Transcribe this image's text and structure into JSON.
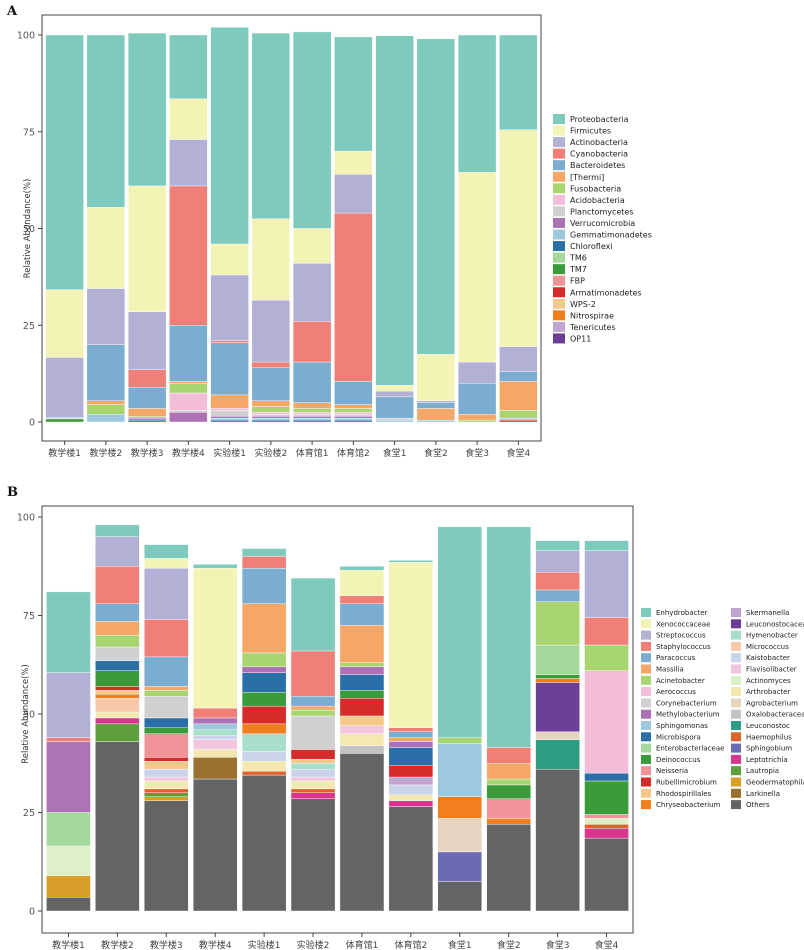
{
  "panels": {
    "a": "A",
    "b": "B"
  },
  "chart_data": [
    {
      "type": "bar",
      "stacked": true,
      "panel": "A",
      "title": "",
      "xlabel": "",
      "ylabel": "Relative Abundance(%)",
      "ylim": [
        0,
        100
      ],
      "yticks": [
        0,
        25,
        50,
        75,
        100
      ],
      "grid": false,
      "legend_position": "right",
      "categories": [
        "教学楼1",
        "教学楼2",
        "教学楼3",
        "教学楼4",
        "实验楼1",
        "实验楼2",
        "体育馆1",
        "体育馆2",
        "食堂1",
        "食堂2",
        "食堂3",
        "食堂4"
      ],
      "series": [
        {
          "name": "Proteobacteria",
          "color": "#7ECBBE",
          "values": [
            65.8,
            44.5,
            39.5,
            16.5,
            56.0,
            48.0,
            50.8,
            29.5,
            90.3,
            81.5,
            35.5,
            24.5
          ]
        },
        {
          "name": "Firmicutes",
          "color": "#F3F3B5",
          "values": [
            17.5,
            21.0,
            32.5,
            10.5,
            8.0,
            21.0,
            9.0,
            6.0,
            1.5,
            12.0,
            49.0,
            56.0
          ]
        },
        {
          "name": "Actinobacteria",
          "color": "#B3B0D6",
          "values": [
            15.5,
            14.5,
            15.0,
            12.0,
            17.0,
            16.0,
            15.0,
            10.0,
            1.5,
            0.5,
            5.5,
            6.5
          ]
        },
        {
          "name": "Cyanobacteria",
          "color": "#F07F78",
          "values": [
            0,
            0,
            4.5,
            36.0,
            0.5,
            1.5,
            10.5,
            43.5,
            0,
            0,
            0,
            0
          ]
        },
        {
          "name": "Bacteroidetes",
          "color": "#7AADD0",
          "values": [
            0.2,
            14.5,
            5.5,
            14.5,
            13.5,
            8.5,
            10.5,
            6.0,
            5.5,
            1.5,
            8.0,
            2.5
          ]
        },
        {
          "name": "[Thermi]",
          "color": "#F5A767",
          "values": [
            0,
            1.0,
            2.0,
            0.5,
            3.5,
            1.5,
            1.5,
            1.0,
            0,
            3.0,
            1.5,
            7.5
          ]
        },
        {
          "name": "Fusobacteria",
          "color": "#A9D570",
          "values": [
            0,
            2.5,
            0.5,
            2.5,
            0,
            1.5,
            1.0,
            1.0,
            0,
            0,
            0.5,
            2.0
          ]
        },
        {
          "name": "Acidobacteria",
          "color": "#F3BDDA",
          "values": [
            0,
            0,
            0,
            4.5,
            0.5,
            0.5,
            0.5,
            0.5,
            0,
            0,
            0,
            0
          ]
        },
        {
          "name": "Planctomycetes",
          "color": "#D0D0D0",
          "values": [
            0,
            0,
            0,
            0.5,
            1.5,
            0.5,
            0.5,
            0.5,
            0.5,
            0,
            0,
            0
          ]
        },
        {
          "name": "Verrucomicrobia",
          "color": "#AD71B6",
          "values": [
            0.2,
            0,
            0.5,
            2.5,
            0.5,
            0.5,
            0.5,
            0.5,
            0,
            0,
            0,
            0
          ]
        },
        {
          "name": "Gemmatimonadetes",
          "color": "#9DC8E0",
          "values": [
            0,
            2.0,
            0,
            0,
            0.5,
            0.5,
            0.5,
            0.5,
            0.5,
            0.5,
            0,
            0.5
          ]
        },
        {
          "name": "Chloroflexi",
          "color": "#2A6FA8",
          "values": [
            0,
            0,
            0.5,
            0,
            0.5,
            0.5,
            0.5,
            0.5,
            0,
            0,
            0,
            0
          ]
        },
        {
          "name": "TM6",
          "color": "#A3D99A",
          "values": [
            0,
            0,
            0,
            0,
            0,
            0,
            0,
            0,
            0,
            0,
            0,
            0
          ]
        },
        {
          "name": "TM7",
          "color": "#3A9B3A",
          "values": [
            0.8,
            0,
            0,
            0,
            0,
            0,
            0,
            0,
            0,
            0,
            0,
            0
          ]
        },
        {
          "name": "FBP",
          "color": "#F0949A",
          "values": [
            0,
            0,
            0,
            0,
            0,
            0,
            0,
            0,
            0,
            0,
            0,
            0
          ]
        },
        {
          "name": "Armatimonadetes",
          "color": "#D62B2B",
          "values": [
            0,
            0,
            0,
            0,
            0,
            0,
            0,
            0,
            0,
            0,
            0,
            0.5
          ]
        },
        {
          "name": "WPS-2",
          "color": "#F5C98A",
          "values": [
            0,
            0,
            0,
            0,
            0,
            0,
            0,
            0,
            0,
            0,
            0,
            0
          ]
        },
        {
          "name": "Nitrospirae",
          "color": "#F07E1E",
          "values": [
            0,
            0,
            0,
            0,
            0,
            0,
            0,
            0,
            0,
            0,
            0,
            0
          ]
        },
        {
          "name": "Tenericutes",
          "color": "#BFA6D2",
          "values": [
            0,
            0,
            0,
            0,
            0,
            0,
            0,
            0,
            0,
            0,
            0,
            0
          ]
        },
        {
          "name": "OP11",
          "color": "#6B3F98",
          "values": [
            0,
            0,
            0,
            0,
            0,
            0,
            0,
            0,
            0,
            0,
            0,
            0
          ]
        }
      ]
    },
    {
      "type": "bar",
      "stacked": true,
      "panel": "B",
      "title": "",
      "xlabel": "",
      "ylabel": "Relative Abundance(%)",
      "ylim": [
        0,
        100
      ],
      "yticks": [
        0,
        25,
        50,
        75,
        100
      ],
      "grid": false,
      "legend_position": "right",
      "categories": [
        "教学楼1",
        "教学楼2",
        "教学楼3",
        "教学楼4",
        "实验楼1",
        "实验楼2",
        "体育馆1",
        "体育馆2",
        "食堂1",
        "食堂2",
        "食堂3",
        "食堂4"
      ],
      "stack_order": "others-at-bottom",
      "series": [
        {
          "name": "Enhydrobacter",
          "color": "#7ECBBE",
          "values": [
            20.5,
            3.0,
            3.5,
            1.0,
            2.0,
            18.5,
            1.0,
            0.5,
            53.5,
            56.0,
            2.5,
            2.5
          ]
        },
        {
          "name": "Xenococcaceae",
          "color": "#F3F3B5",
          "values": [
            0,
            0,
            2.5,
            35.5,
            0,
            0,
            6.5,
            42.0,
            0,
            0,
            0,
            0
          ]
        },
        {
          "name": "Streptococcus",
          "color": "#B3B0D6",
          "values": [
            16.5,
            7.5,
            13.0,
            0,
            0,
            0,
            0,
            0,
            0,
            0,
            5.5,
            17.0
          ]
        },
        {
          "name": "Staphylococcus",
          "color": "#F07F78",
          "values": [
            1.0,
            9.5,
            9.5,
            2.5,
            3.0,
            11.5,
            2.0,
            1.0,
            0,
            4.0,
            4.5,
            7.0
          ]
        },
        {
          "name": "Paracoccus",
          "color": "#7AADD0",
          "values": [
            0,
            4.5,
            7.5,
            0,
            9.0,
            2.5,
            5.5,
            1.5,
            0,
            0,
            3.0,
            0
          ]
        },
        {
          "name": "Massilia",
          "color": "#F5A767",
          "values": [
            0,
            3.5,
            1.0,
            0,
            12.5,
            1.0,
            9.5,
            1.0,
            0,
            4.0,
            0,
            0
          ]
        },
        {
          "name": "Acinetobacter",
          "color": "#A9D570",
          "values": [
            0,
            3.0,
            1.5,
            0,
            3.5,
            1.5,
            1.0,
            0,
            1.5,
            1.5,
            11.0,
            6.5
          ]
        },
        {
          "name": "Aerococcus",
          "color": "#F3BDDA",
          "values": [
            0,
            0,
            0,
            0,
            0,
            0,
            0,
            0,
            0,
            0,
            0,
            26.0
          ]
        },
        {
          "name": "Corynebacterium",
          "color": "#D0D0D0",
          "values": [
            0,
            3.5,
            5.5,
            0,
            0,
            8.5,
            0,
            0,
            0,
            0,
            0,
            0
          ]
        },
        {
          "name": "Methylobacterium",
          "color": "#AD71B6",
          "values": [
            18.0,
            0,
            0,
            1.5,
            1.5,
            0,
            2.0,
            1.5,
            0,
            0,
            0,
            0
          ]
        },
        {
          "name": "Sphingomonas",
          "color": "#9DC8E0",
          "values": [
            0,
            0,
            0,
            1.5,
            0,
            0,
            0,
            0,
            13.5,
            0,
            0,
            0
          ]
        },
        {
          "name": "Microbispora",
          "color": "#2A6FA8",
          "values": [
            0,
            2.5,
            2.5,
            0,
            5.0,
            0,
            4.0,
            4.5,
            0,
            0,
            0,
            2.0
          ]
        },
        {
          "name": "Enterobacteriaceae",
          "color": "#A3D99A",
          "values": [
            8.5,
            0,
            0,
            0,
            0,
            0,
            0,
            0,
            0,
            0,
            7.5,
            0
          ]
        },
        {
          "name": "Deinococcus",
          "color": "#3A9B3A",
          "values": [
            0,
            4.0,
            1.5,
            0,
            3.5,
            0,
            2.0,
            0,
            0,
            3.5,
            1.0,
            8.5
          ]
        },
        {
          "name": "Neisseria",
          "color": "#F0949A",
          "values": [
            0,
            0,
            6.0,
            0,
            0,
            0,
            0,
            0,
            0,
            5.0,
            0,
            1.0
          ]
        },
        {
          "name": "Rubellimicrobium",
          "color": "#D62B2B",
          "values": [
            0,
            1.0,
            1.0,
            0,
            4.5,
            2.5,
            4.5,
            3.0,
            0,
            0,
            0,
            0
          ]
        },
        {
          "name": "Rhodospirillales",
          "color": "#F5C98A",
          "values": [
            0,
            1.0,
            2.0,
            0,
            0,
            1.0,
            2.5,
            0,
            0,
            0,
            0,
            0
          ]
        },
        {
          "name": "Chryseobacterium",
          "color": "#F07E1E",
          "values": [
            0,
            1.0,
            0,
            0,
            2.5,
            0,
            0,
            0,
            5.5,
            1.5,
            1.0,
            0
          ]
        },
        {
          "name": "Skermanella",
          "color": "#BFA6D2",
          "values": [
            0,
            0,
            0,
            0,
            0,
            0,
            0,
            2.0,
            0,
            0,
            0,
            0
          ]
        },
        {
          "name": "Leuconostocaceae",
          "color": "#6B3F98",
          "values": [
            0,
            0,
            0,
            0,
            0,
            0,
            0,
            0,
            0,
            0,
            12.5,
            0
          ]
        },
        {
          "name": "Hymenobacter",
          "color": "#A8DFCB",
          "values": [
            0,
            0,
            0,
            1.5,
            4.5,
            1.5,
            0,
            0,
            0,
            0,
            0,
            0
          ]
        },
        {
          "name": "Micrococcus",
          "color": "#F8C8A8",
          "values": [
            0,
            3.5,
            0,
            0,
            0,
            0,
            0,
            0,
            0,
            0,
            0,
            0
          ]
        },
        {
          "name": "Kaistobacter",
          "color": "#C9D3EA",
          "values": [
            0,
            0,
            2.0,
            1.0,
            2.5,
            2.0,
            0,
            2.5,
            0,
            0,
            0,
            0
          ]
        },
        {
          "name": "Flavisolibacter",
          "color": "#F3C6E0",
          "values": [
            0,
            0,
            1.0,
            2.5,
            0,
            1.0,
            2.0,
            0,
            0,
            0,
            0,
            0
          ]
        },
        {
          "name": "Actinomyces",
          "color": "#DDEFC7",
          "values": [
            7.5,
            0,
            0,
            0,
            0,
            0,
            0,
            0,
            0,
            0,
            0,
            1.5
          ]
        },
        {
          "name": "Arthrobacter",
          "color": "#F3E9B0",
          "values": [
            0,
            1.5,
            2.0,
            2.0,
            2.5,
            2.0,
            3.0,
            1.5,
            0,
            0,
            0,
            0
          ]
        },
        {
          "name": "Agrobacterium",
          "color": "#E8D5C1",
          "values": [
            0,
            0,
            0,
            0,
            0,
            0,
            0,
            0,
            8.5,
            0,
            2.0,
            0
          ]
        },
        {
          "name": "Oxalobacteraceae",
          "color": "#C4C4C4",
          "values": [
            0,
            0,
            0,
            0,
            0,
            0,
            2.0,
            0,
            0,
            0,
            0,
            0
          ]
        },
        {
          "name": "Leuconostoc",
          "color": "#2E9B83",
          "values": [
            0,
            0,
            0,
            0,
            0,
            0,
            0,
            0,
            0,
            0,
            7.5,
            0
          ]
        },
        {
          "name": "Haemophilus",
          "color": "#E0622A",
          "values": [
            0,
            0,
            1.0,
            0,
            1.0,
            1.0,
            0,
            0,
            0,
            0,
            0,
            1.0
          ]
        },
        {
          "name": "Sphingobium",
          "color": "#6A6BB3",
          "values": [
            0,
            0,
            0,
            0,
            0,
            0,
            0,
            0,
            7.5,
            0,
            0,
            0
          ]
        },
        {
          "name": "Leptotrichia",
          "color": "#D9348E",
          "values": [
            0,
            1.5,
            0,
            0,
            0,
            1.5,
            0,
            1.5,
            0,
            0,
            0,
            2.5
          ]
        },
        {
          "name": "Lautropia",
          "color": "#5E9E3B",
          "values": [
            0,
            4.5,
            1.0,
            0,
            0,
            0,
            0,
            0,
            0,
            0,
            0,
            0
          ]
        },
        {
          "name": "Geodermatophilaceae",
          "color": "#D79E2A",
          "values": [
            5.5,
            0,
            1.0,
            0,
            0,
            0,
            0,
            0,
            0,
            0,
            0,
            0
          ]
        },
        {
          "name": "Larkinella",
          "color": "#9B7130",
          "values": [
            0,
            0,
            0,
            5.5,
            0,
            0,
            0,
            0,
            0,
            0,
            0,
            0
          ]
        },
        {
          "name": "Others",
          "color": "#636466",
          "values": [
            3.5,
            43.0,
            28.0,
            33.5,
            34.5,
            28.5,
            40.0,
            26.5,
            7.5,
            22.0,
            36.0,
            18.5
          ]
        }
      ]
    }
  ]
}
